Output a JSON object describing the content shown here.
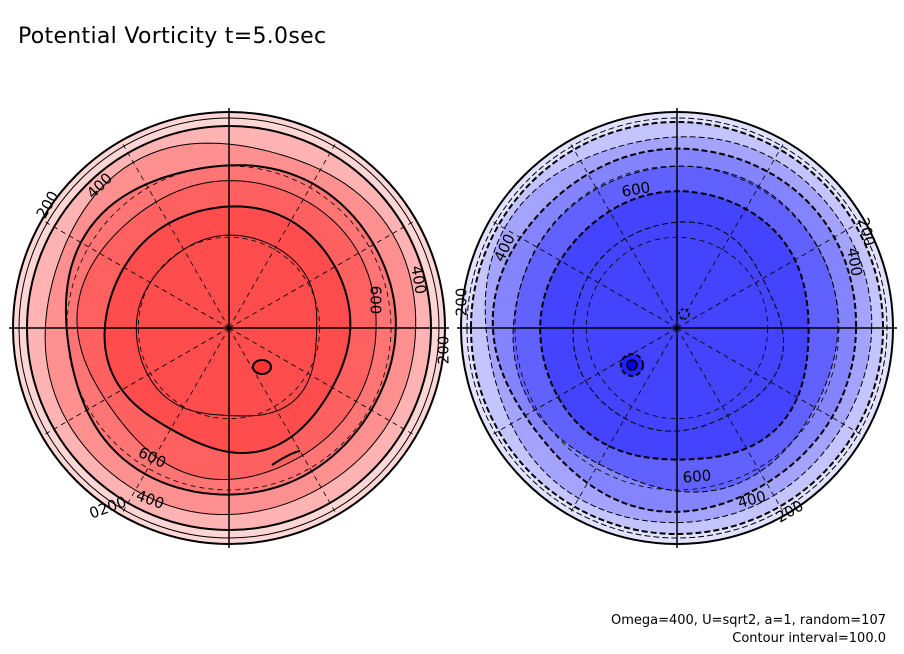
{
  "chart_data": {
    "type": "polar contour map",
    "title": "Potential Vorticity t=5.0sec",
    "annotation_lines": [
      "Omega=400, U=sqrt2, a=1, random=107",
      "Contour interval=100.0"
    ],
    "contour_interval": 100,
    "panels": [
      {
        "name": "left",
        "color_scale": "red",
        "fill_colors": [
          "#ffd6d6",
          "#ffb3b3",
          "#ff9090",
          "#ff7474",
          "#ff6161",
          "#ff4d4d"
        ],
        "levels": [
          100,
          200,
          300,
          400,
          500,
          600,
          700
        ],
        "labeled_levels": [
          {
            "text": "200"
          },
          {
            "text": "400"
          },
          {
            "text": "400"
          },
          {
            "text": "600"
          },
          {
            "text": "200"
          },
          {
            "text": "600"
          },
          {
            "text": "400"
          },
          {
            "text": "0200"
          }
        ]
      },
      {
        "name": "right",
        "color_scale": "blue",
        "fill_colors": [
          "#e2e2ff",
          "#c4c4ff",
          "#a4a4ff",
          "#8484ff",
          "#6161ff",
          "#4444ff"
        ],
        "levels": [
          -700,
          -600,
          -500,
          -400,
          -300,
          -200,
          -100
        ],
        "labeled_levels": [
          {
            "text": "600"
          },
          {
            "text": "400"
          },
          {
            "text": "200"
          },
          {
            "text": "400"
          },
          {
            "text": "200"
          },
          {
            "text": "600"
          },
          {
            "text": "400"
          },
          {
            "text": "200"
          }
        ]
      }
    ]
  }
}
